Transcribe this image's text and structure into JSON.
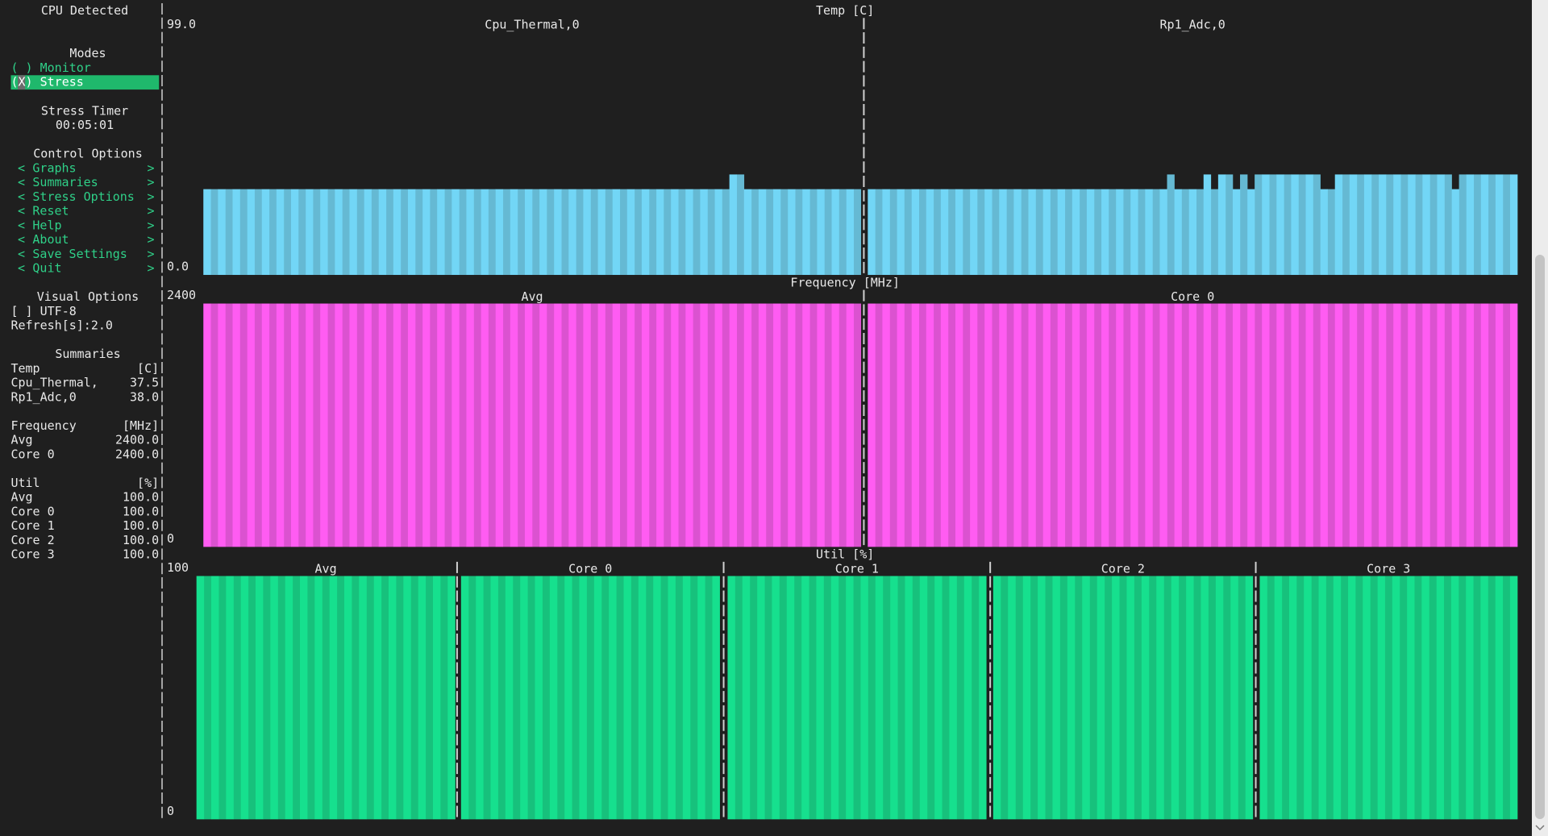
{
  "sidebar": {
    "title": "CPU Detected",
    "modes": {
      "heading": "Modes",
      "options": [
        "( ) Monitor",
        "(X) Stress"
      ]
    },
    "stress_timer": {
      "heading": "Stress Timer",
      "value": "00:05:01"
    },
    "control_options": {
      "heading": "Control Options",
      "brackets": [
        "<",
        ">"
      ],
      "buttons": [
        "Graphs",
        "Summaries",
        "Stress Options",
        "Reset",
        "Help",
        "About",
        "Save Settings",
        "Quit"
      ]
    },
    "visual_options": {
      "heading": "Visual Options",
      "items": [
        "[ ] UTF-8",
        "Refresh[s]:2.0"
      ]
    },
    "summaries": {
      "heading": "Summaries",
      "groups": [
        {
          "name": "Temp",
          "unit": "[C]",
          "rows": [
            {
              "label": "Cpu_Thermal,",
              "value": "37.5"
            },
            {
              "label": "Rp1_Adc,0",
              "value": "38.0"
            }
          ]
        },
        {
          "name": "Frequency",
          "unit": "[MHz]",
          "rows": [
            {
              "label": "Avg",
              "value": "2400.0"
            },
            {
              "label": "Core 0",
              "value": "2400.0"
            }
          ]
        },
        {
          "name": "Util",
          "unit": "[%]",
          "rows": [
            {
              "label": "Avg",
              "value": "100.0"
            },
            {
              "label": "Core 0",
              "value": "100.0"
            },
            {
              "label": "Core 1",
              "value": "100.0"
            },
            {
              "label": "Core 2",
              "value": "100.0"
            },
            {
              "label": "Core 3",
              "value": "100.0"
            }
          ]
        }
      ]
    }
  },
  "chart_data": [
    {
      "type": "bar",
      "title": "Temp [C]",
      "ylim": [
        0,
        99
      ],
      "yticks": [
        {
          "value": 99,
          "label": "99.0"
        },
        {
          "value": 0,
          "label": "0.0"
        }
      ],
      "series": [
        {
          "name": "Cpu_Thermal,0",
          "color": "#72d6f6",
          "values": [
            35,
            35,
            35,
            35,
            35,
            35,
            35,
            35,
            35,
            35,
            35,
            35,
            35,
            35,
            35,
            35,
            35,
            35,
            35,
            35,
            35,
            35,
            35,
            35,
            35,
            35,
            35,
            35,
            35,
            35,
            35,
            35,
            35,
            35,
            35,
            35,
            35,
            35,
            35,
            35,
            35,
            35,
            35,
            35,
            35,
            35,
            35,
            35,
            35,
            35,
            35,
            35,
            35,
            35,
            35,
            35,
            35,
            35,
            35,
            35,
            35,
            35,
            35,
            35,
            35,
            35,
            35,
            35,
            35,
            35,
            35,
            35,
            41,
            41,
            35,
            35,
            35,
            35,
            35,
            35,
            35,
            35,
            35,
            35,
            35,
            35,
            35,
            35,
            35,
            35
          ]
        },
        {
          "name": "Rp1_Adc,0",
          "color": "#72d6f6",
          "values": [
            35,
            35,
            35,
            35,
            35,
            35,
            35,
            35,
            35,
            35,
            35,
            35,
            35,
            35,
            35,
            35,
            35,
            35,
            35,
            35,
            35,
            35,
            35,
            35,
            35,
            35,
            35,
            35,
            35,
            35,
            35,
            35,
            35,
            35,
            35,
            35,
            35,
            35,
            35,
            35,
            35,
            41,
            35,
            35,
            35,
            35,
            41,
            35,
            41,
            41,
            35,
            41,
            35,
            41,
            41,
            41,
            41,
            41,
            41,
            41,
            41,
            41,
            35,
            35,
            41,
            41,
            41,
            41,
            41,
            41,
            41,
            41,
            41,
            41,
            41,
            41,
            41,
            41,
            41,
            41,
            35,
            41,
            41,
            41,
            41,
            41,
            41,
            41,
            41
          ]
        }
      ]
    },
    {
      "type": "bar",
      "title": "Frequency [MHz]",
      "ylim": [
        0,
        2400
      ],
      "yticks": [
        2400,
        0
      ],
      "series": [
        {
          "name": "Avg",
          "color": "#ff5cf2",
          "values": [
            2400,
            2400,
            2400,
            2400,
            2400,
            2400,
            2400,
            2400,
            2400,
            2400,
            2400,
            2400,
            2400,
            2400,
            2400,
            2400,
            2400,
            2400,
            2400,
            2400,
            2400,
            2400,
            2400,
            2400,
            2400,
            2400,
            2400,
            2400,
            2400,
            2400,
            2400,
            2400,
            2400,
            2400,
            2400,
            2400,
            2400,
            2400,
            2400,
            2400,
            2400,
            2400,
            2400,
            2400,
            2400,
            2400,
            2400,
            2400,
            2400,
            2400,
            2400,
            2400,
            2400,
            2400,
            2400,
            2400,
            2400,
            2400,
            2400,
            2400,
            2400,
            2400,
            2400,
            2400,
            2400,
            2400,
            2400,
            2400,
            2400,
            2400,
            2400,
            2400,
            2400,
            2400,
            2400,
            2400,
            2400,
            2400,
            2400,
            2400,
            2400,
            2400,
            2400,
            2400,
            2400,
            2400,
            2400,
            2400,
            2400,
            2400
          ]
        },
        {
          "name": "Core 0",
          "color": "#ff5cf2",
          "values": [
            2400,
            2400,
            2400,
            2400,
            2400,
            2400,
            2400,
            2400,
            2400,
            2400,
            2400,
            2400,
            2400,
            2400,
            2400,
            2400,
            2400,
            2400,
            2400,
            2400,
            2400,
            2400,
            2400,
            2400,
            2400,
            2400,
            2400,
            2400,
            2400,
            2400,
            2400,
            2400,
            2400,
            2400,
            2400,
            2400,
            2400,
            2400,
            2400,
            2400,
            2400,
            2400,
            2400,
            2400,
            2400,
            2400,
            2400,
            2400,
            2400,
            2400,
            2400,
            2400,
            2400,
            2400,
            2400,
            2400,
            2400,
            2400,
            2400,
            2400,
            2400,
            2400,
            2400,
            2400,
            2400,
            2400,
            2400,
            2400,
            2400,
            2400,
            2400,
            2400,
            2400,
            2400,
            2400,
            2400,
            2400,
            2400,
            2400,
            2400,
            2400,
            2400,
            2400,
            2400,
            2400,
            2400,
            2400,
            2400,
            2400
          ]
        }
      ]
    },
    {
      "type": "bar",
      "title": "Util [%]",
      "ylim": [
        0,
        100
      ],
      "yticks": [
        100,
        0
      ],
      "series": [
        {
          "name": "Avg",
          "color": "#16e08e",
          "values": [
            100,
            100,
            100,
            100,
            100,
            100,
            100,
            100,
            100,
            100,
            100,
            100,
            100,
            100,
            100,
            100,
            100,
            100,
            100,
            100,
            100,
            100,
            100,
            100,
            100,
            100,
            100,
            100,
            100,
            100,
            100,
            100,
            100,
            100,
            100
          ]
        },
        {
          "name": "Core 0",
          "color": "#16e08e",
          "values": [
            100,
            100,
            100,
            100,
            100,
            100,
            100,
            100,
            100,
            100,
            100,
            100,
            100,
            100,
            100,
            100,
            100,
            100,
            100,
            100,
            100,
            100,
            100,
            100,
            100,
            100,
            100,
            100,
            100,
            100,
            100,
            100,
            100,
            100,
            100
          ]
        },
        {
          "name": "Core 1",
          "color": "#16e08e",
          "values": [
            100,
            100,
            100,
            100,
            100,
            100,
            100,
            100,
            100,
            100,
            100,
            100,
            100,
            100,
            100,
            100,
            100,
            100,
            100,
            100,
            100,
            100,
            100,
            100,
            100,
            100,
            100,
            100,
            100,
            100,
            100,
            100,
            100,
            100,
            100
          ]
        },
        {
          "name": "Core 2",
          "color": "#16e08e",
          "values": [
            100,
            100,
            100,
            100,
            100,
            100,
            100,
            100,
            100,
            100,
            100,
            100,
            100,
            100,
            100,
            100,
            100,
            100,
            100,
            100,
            100,
            100,
            100,
            100,
            100,
            100,
            100,
            100,
            100,
            100,
            100,
            100,
            100,
            100,
            100
          ]
        },
        {
          "name": "Core 3",
          "color": "#16e08e",
          "values": [
            100,
            100,
            100,
            100,
            100,
            100,
            100,
            100,
            100,
            100,
            100,
            100,
            100,
            100,
            100,
            100,
            100,
            100,
            100,
            100,
            100,
            100,
            100,
            100,
            100,
            100,
            100,
            100,
            100,
            100,
            100,
            100,
            100,
            100,
            100
          ]
        }
      ]
    }
  ]
}
